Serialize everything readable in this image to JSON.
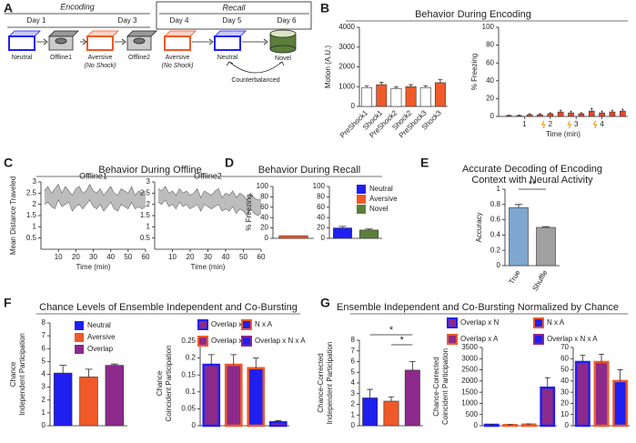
{
  "panels": [
    {
      "label": "A"
    },
    {
      "label": "B",
      "title": "Behavior During Encoding"
    },
    {
      "label": "C",
      "title": "Behavior During Offline"
    },
    {
      "label": "D",
      "title": "Behavior During Recall"
    },
    {
      "label": "E",
      "title": [
        "Accurate Decoding of Encoding",
        "Context with Neural Activity"
      ]
    },
    {
      "label": "F",
      "title": "Chance Levels of Ensemble Independent and Co-Bursting"
    },
    {
      "label": "G",
      "title": "Ensemble Independent and Co-Bursting Normalized by Chance"
    }
  ],
  "diagram": {
    "headers": [
      "Encoding",
      "Recall"
    ],
    "days": [
      "Day 1",
      "Day 3",
      "Day 4",
      "Day 5",
      "Day 6"
    ],
    "boxes": [
      {
        "label": "Neutral"
      },
      {
        "label": "Offline1"
      },
      {
        "label": "Aversive",
        "note": "(No Shock)"
      },
      {
        "label": "Offline2"
      },
      {
        "label": "Aversive",
        "note": "(No Shock)"
      },
      {
        "label": "Neutral"
      },
      {
        "label": "Novel"
      }
    ],
    "footnote": "Counterbalanced"
  },
  "chart_data": [
    {
      "type": "bar",
      "categories": [
        "PreShock1",
        "Shock1",
        "PreShock2",
        "Shock2",
        "PreShock3",
        "Shock3"
      ],
      "values": [
        950,
        1100,
        900,
        1000,
        950,
        1200
      ],
      "errors": [
        80,
        120,
        80,
        100,
        90,
        150
      ],
      "colors": [
        "#ffffff",
        "#f05a28",
        "#ffffff",
        "#f05a28",
        "#ffffff",
        "#f05a28"
      ],
      "ylabel": [
        "Motion (A.U.)"
      ],
      "ylim": [
        0,
        4000
      ],
      "yticks": [
        0,
        1000,
        2000,
        3000,
        4000
      ],
      "rotate_labels": -45
    },
    {
      "type": "bar",
      "x": [
        0.4,
        0.8,
        1.2,
        1.6,
        2.0,
        2.4,
        2.8,
        3.2,
        3.6,
        4.0,
        4.4,
        4.8
      ],
      "values": [
        1,
        1,
        2,
        2,
        3,
        5,
        4,
        3,
        6,
        4,
        5,
        6
      ],
      "errors": [
        0.5,
        0.5,
        1,
        1,
        1,
        2,
        2,
        1,
        3,
        2,
        2,
        2
      ],
      "color": "#e8452a",
      "ylabel": [
        "% Freezing"
      ],
      "xlabel": "Time (min)",
      "xlim": [
        0,
        5
      ],
      "xticks": [
        1,
        2,
        3,
        4
      ],
      "ylim": [
        0,
        100
      ],
      "yticks": [
        0,
        20,
        40,
        60,
        80,
        100
      ]
    },
    {
      "type": "band",
      "title": "Offline1",
      "ylabel": [
        "Mean Distance Traveled"
      ],
      "xlabel": "Time (min)",
      "x": [
        2,
        4,
        6,
        8,
        10,
        12,
        14,
        16,
        18,
        20,
        22,
        24,
        26,
        28,
        30,
        32,
        34,
        36,
        38,
        40,
        42,
        44,
        46,
        48,
        50,
        52,
        54,
        56,
        58,
        60
      ],
      "upper": [
        2.6,
        2.8,
        2.5,
        2.7,
        2.9,
        2.5,
        2.8,
        2.6,
        2.4,
        2.7,
        2.8,
        2.5,
        2.6,
        2.9,
        2.6,
        2.5,
        2.7,
        2.4,
        2.6,
        2.8,
        2.5,
        2.4,
        2.7,
        2.6,
        2.5,
        2.8,
        2.4,
        2.6,
        2.5,
        2.6
      ],
      "lower": [
        2.0,
        2.1,
        1.9,
        1.8,
        2.2,
        1.9,
        2.0,
        2.1,
        1.7,
        1.9,
        2.0,
        1.8,
        2.0,
        2.2,
        1.9,
        1.8,
        2.0,
        1.7,
        1.9,
        2.1,
        1.8,
        1.7,
        2.0,
        1.9,
        1.8,
        2.1,
        1.8,
        1.9,
        1.8,
        1.9
      ],
      "color": "#bdbdbd",
      "xlim": [
        0,
        60
      ],
      "xticks": [
        10,
        20,
        30,
        40,
        50,
        60
      ],
      "ylim": [
        0,
        3
      ],
      "yticks": [
        0.5,
        1,
        1.5,
        2,
        2.5,
        3
      ]
    },
    {
      "type": "band",
      "title": "Offline2",
      "xlabel": "Time (min)",
      "x": [
        2,
        4,
        6,
        8,
        10,
        12,
        14,
        16,
        18,
        20,
        22,
        24,
        26,
        28,
        30,
        32,
        34,
        36,
        38,
        40,
        42,
        44,
        46,
        48,
        50,
        52,
        54,
        56,
        58,
        60
      ],
      "upper": [
        2.7,
        2.6,
        2.8,
        2.5,
        2.6,
        2.4,
        2.7,
        2.5,
        2.6,
        2.4,
        2.5,
        2.7,
        2.3,
        2.6,
        2.5,
        2.4,
        2.6,
        2.7,
        2.3,
        2.5,
        2.4,
        2.6,
        2.3,
        2.5,
        2.4,
        2.2,
        2.5,
        2.3,
        2.2,
        2.2
      ],
      "lower": [
        2.1,
        2.0,
        2.2,
        1.9,
        2.0,
        1.8,
        2.1,
        1.9,
        2.0,
        1.8,
        1.9,
        2.0,
        1.7,
        2.0,
        1.9,
        1.8,
        1.9,
        2.0,
        1.7,
        1.8,
        1.7,
        1.9,
        1.6,
        1.8,
        1.7,
        1.5,
        1.8,
        1.6,
        1.5,
        1.6
      ],
      "color": "#bdbdbd",
      "xlim": [
        0,
        60
      ],
      "xticks": [
        10,
        20,
        30,
        40,
        50,
        60
      ],
      "ylim": [
        0,
        3
      ],
      "yticks": [
        0.5,
        1,
        1.5,
        2,
        2.5,
        3
      ]
    },
    {
      "type": "bar",
      "categories": [
        null
      ],
      "values": [
        5
      ],
      "colors": [
        "#f05a28"
      ],
      "ylabel": [
        "% Freezing"
      ],
      "ylim": [
        0,
        100
      ],
      "yticks": [
        0,
        20,
        40,
        60,
        80,
        100
      ]
    },
    {
      "type": "bar",
      "categories": [
        null,
        null
      ],
      "values": [
        20,
        16
      ],
      "errors": [
        3,
        2
      ],
      "colors": [
        "#1f1ff0",
        "#5b7f3a"
      ],
      "legend": [
        {
          "name": "Neutral",
          "fill": "#1f1ff0"
        },
        {
          "name": "Aversive",
          "fill": "#f05a28"
        },
        {
          "name": "Novel",
          "fill": "#5b7f3a"
        }
      ],
      "ylim": [
        0,
        100
      ],
      "yticks": [
        0,
        20,
        40,
        60,
        80,
        100
      ]
    },
    {
      "type": "bar",
      "categories": [
        "True",
        "Shuffle"
      ],
      "values": [
        0.76,
        0.5
      ],
      "errors": [
        0.04,
        0.01
      ],
      "colors": [
        "#7ea6cf",
        "#a0a0a0"
      ],
      "ylabel": [
        "Accuracy"
      ],
      "ylim": [
        0,
        1
      ],
      "yticks": [
        0,
        0.2,
        0.4,
        0.6,
        0.8,
        1
      ],
      "annotations": [
        "**"
      ],
      "rotate_labels": -60
    },
    {
      "type": "bar",
      "categories": [
        null,
        null,
        null
      ],
      "values": [
        4.1,
        3.8,
        4.7
      ],
      "errors": [
        0.6,
        0.6,
        0.1
      ],
      "colors": [
        "#1f1ff0",
        "#f05a28",
        "#8b2a8b"
      ],
      "ylabel": [
        "Chance",
        "Independent Participation"
      ],
      "legend": [
        {
          "name": "Neutral",
          "fill": "#1f1ff0"
        },
        {
          "name": "Aversive",
          "fill": "#f05a28"
        },
        {
          "name": "Overlap",
          "fill": "#8b2a8b"
        }
      ],
      "ylim": [
        0,
        8
      ],
      "yticks": [
        0,
        1,
        2,
        3,
        4,
        5,
        6,
        7,
        8
      ]
    },
    {
      "type": "bar",
      "categories": [
        null,
        null,
        null,
        null
      ],
      "values": [
        0.18,
        0.18,
        0.17,
        0.01
      ],
      "errors": [
        0.03,
        0.03,
        0.03,
        0.005
      ],
      "colors": [
        "#8b2a8b",
        "#8b2a8b",
        "#1f1ff0",
        "#8b2a8b"
      ],
      "strokes": [
        "#1f1ff0",
        "#f05a28",
        "#f05a28",
        "#1f1ff0"
      ],
      "ylabel": [
        "Chance",
        "Coincident Participation"
      ],
      "legend": [
        {
          "name": "Overlap x N",
          "fill": "#8b2a8b",
          "stroke": "#1f1ff0"
        },
        {
          "name": "N x A",
          "fill": "#1f1ff0",
          "stroke": "#f05a28"
        },
        {
          "name": "Overlap x A",
          "fill": "#8b2a8b",
          "stroke": "#f05a28"
        },
        {
          "name": "Overlap x N x A",
          "fill": "#1f1ff0",
          "stroke": "#8b2a8b"
        }
      ],
      "ylim": [
        0,
        0.25
      ],
      "yticks": [
        0,
        0.05,
        0.1,
        0.15,
        0.2,
        0.25
      ]
    },
    {
      "type": "bar",
      "categories": [
        null,
        null,
        null
      ],
      "values": [
        2.6,
        2.3,
        5.2
      ],
      "errors": [
        0.8,
        0.4,
        0.8
      ],
      "colors": [
        "#1f1ff0",
        "#f05a28",
        "#8b2a8b"
      ],
      "ylabel": [
        "Chance-Corrected",
        "Independent Participation"
      ],
      "ylim": [
        0,
        8
      ],
      "yticks": [
        0,
        1,
        2,
        3,
        4,
        5,
        6,
        7,
        8
      ],
      "annotations": [
        "*",
        "*"
      ]
    },
    {
      "type": "bar",
      "categories": [
        null,
        null,
        null,
        null
      ],
      "values": [
        40,
        30,
        50,
        1700
      ],
      "errors": [
        20,
        20,
        30,
        450
      ],
      "colors": [
        "#8b2a8b",
        "#8b2a8b",
        "#1f1ff0",
        "#8b2a8b"
      ],
      "strokes": [
        "#1f1ff0",
        "#f05a28",
        "#f05a28",
        "#1f1ff0"
      ],
      "ylabel": [
        "Chance-Corrected",
        "Coincident Participation"
      ],
      "legend": [
        {
          "name": "Overlap x N",
          "fill": "#8b2a8b",
          "stroke": "#1f1ff0"
        },
        {
          "name": "N x A",
          "fill": "#1f1ff0",
          "stroke": "#f05a28"
        },
        {
          "name": "Overlap x A",
          "fill": "#8b2a8b",
          "stroke": "#f05a28"
        },
        {
          "name": "Overlap x N x A",
          "fill": "#1f1ff0",
          "stroke": "#8b2a8b"
        }
      ],
      "ylim": [
        0,
        3500
      ],
      "yticks": [
        0,
        500,
        1000,
        1500,
        2000,
        2500,
        3000,
        3500
      ]
    },
    {
      "type": "bar",
      "categories": [
        null,
        null,
        null
      ],
      "values": [
        57,
        57,
        40
      ],
      "errors": [
        6,
        7,
        10
      ],
      "colors": [
        "#8b2a8b",
        "#8b2a8b",
        "#1f1ff0"
      ],
      "strokes": [
        "#1f1ff0",
        "#f05a28",
        "#f05a28"
      ],
      "ylim": [
        0,
        70
      ],
      "yticks": [
        0,
        10,
        20,
        30,
        40,
        50,
        60,
        70
      ]
    }
  ]
}
